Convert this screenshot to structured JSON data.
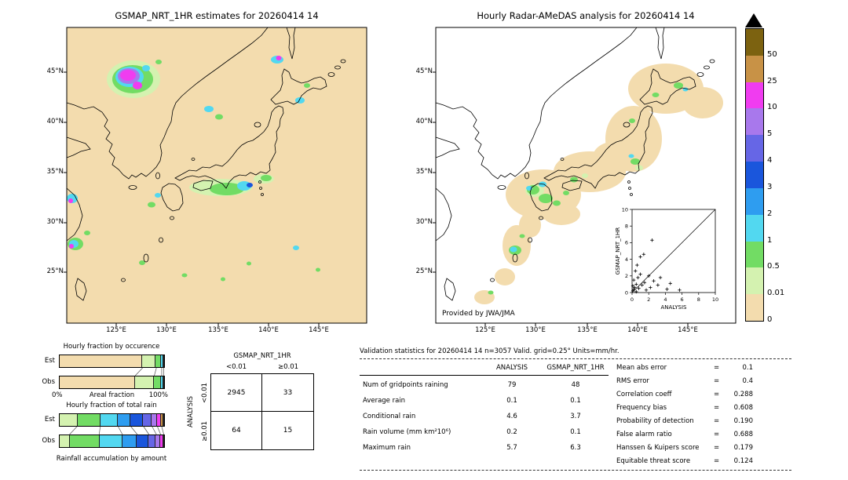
{
  "maps": {
    "left": {
      "title": "GSMAP_NRT_1HR estimates for 20260414 14"
    },
    "right": {
      "title": "Hourly Radar-AMeDAS analysis for 20260414 14",
      "credit": "Provided by JWA/JMA"
    },
    "lat_ticks": [
      "45°N",
      "40°N",
      "35°N",
      "30°N",
      "25°N"
    ],
    "lon_ticks": [
      "125°E",
      "130°E",
      "135°E",
      "140°E",
      "145°E"
    ]
  },
  "colorbar": {
    "labels": [
      "50",
      "25",
      "10",
      "5",
      "4",
      "3",
      "2",
      "1",
      "0.5",
      "0.01",
      "0"
    ],
    "colors_top_to_bottom": [
      "#7c6210",
      "#c89246",
      "#f03cf0",
      "#a878ec",
      "#6666e6",
      "#1a56dc",
      "#2e9df0",
      "#52d8f0",
      "#72dc64",
      "#d4f2b0",
      "#f3dcae"
    ]
  },
  "occurrence": {
    "title": "Hourly fraction by occurence",
    "rows": [
      {
        "label": "Est",
        "segments": [
          {
            "c": "#f3dcae",
            "w": 0.79
          },
          {
            "c": "#d4f2b0",
            "w": 0.13
          },
          {
            "c": "#72dc64",
            "w": 0.05
          },
          {
            "c": "#52d8f0",
            "w": 0.02
          },
          {
            "c": "#2e9df0",
            "w": 0.01
          }
        ]
      },
      {
        "label": "Obs",
        "segments": [
          {
            "c": "#f3dcae",
            "w": 0.72
          },
          {
            "c": "#d4f2b0",
            "w": 0.18
          },
          {
            "c": "#72dc64",
            "w": 0.07
          },
          {
            "c": "#52d8f0",
            "w": 0.02
          },
          {
            "c": "#2e9df0",
            "w": 0.01
          }
        ]
      }
    ],
    "axis": {
      "left": "0%",
      "center": "Areal fraction",
      "right": "100%"
    }
  },
  "total_rain": {
    "title": "Hourly fraction of total rain",
    "rows": [
      {
        "label": "Est",
        "segments": [
          {
            "c": "#d4f2b0",
            "w": 0.17
          },
          {
            "c": "#72dc64",
            "w": 0.22
          },
          {
            "c": "#52d8f0",
            "w": 0.17
          },
          {
            "c": "#2e9df0",
            "w": 0.12
          },
          {
            "c": "#1a56dc",
            "w": 0.12
          },
          {
            "c": "#6666e6",
            "w": 0.08
          },
          {
            "c": "#a878ec",
            "w": 0.05
          },
          {
            "c": "#f03cf0",
            "w": 0.04
          },
          {
            "c": "#c89246",
            "w": 0.02
          },
          {
            "c": "#7c6210",
            "w": 0.01
          }
        ]
      },
      {
        "label": "Obs",
        "segments": [
          {
            "c": "#d4f2b0",
            "w": 0.1
          },
          {
            "c": "#72dc64",
            "w": 0.28
          },
          {
            "c": "#52d8f0",
            "w": 0.22
          },
          {
            "c": "#2e9df0",
            "w": 0.14
          },
          {
            "c": "#1a56dc",
            "w": 0.11
          },
          {
            "c": "#6666e6",
            "w": 0.07
          },
          {
            "c": "#a878ec",
            "w": 0.04
          },
          {
            "c": "#f03cf0",
            "w": 0.03
          },
          {
            "c": "#c89246",
            "w": 0.01
          }
        ]
      }
    ],
    "caption": "Rainfall accumulation by amount"
  },
  "contingency": {
    "col_header": "GSMAP_NRT_1HR",
    "row_header": "ANALYSIS",
    "col_labels": [
      "<0.01",
      "≥0.01"
    ],
    "row_labels": [
      "<0.01",
      "≥0.01"
    ],
    "values": [
      [
        "2945",
        "33"
      ],
      [
        "64",
        "15"
      ]
    ]
  },
  "validation": {
    "title": "Validation statistics for 20260414 14  n=3057 Valid. grid=0.25° Units=mm/hr.",
    "col_headers": [
      "ANALYSIS",
      "GSMAP_NRT_1HR"
    ],
    "rows": [
      {
        "label": "Num of gridpoints raining",
        "a": "79",
        "g": "48"
      },
      {
        "label": "Average rain",
        "a": "0.1",
        "g": "0.1"
      },
      {
        "label": "Conditional rain",
        "a": "4.6",
        "g": "3.7"
      },
      {
        "label": "Rain volume (mm km²10⁶)",
        "a": "0.2",
        "g": "0.1"
      },
      {
        "label": "Maximum rain",
        "a": "5.7",
        "g": "6.3"
      }
    ],
    "stats": [
      {
        "label": "Mean abs error",
        "value": "0.1"
      },
      {
        "label": "RMS error",
        "value": "0.4"
      },
      {
        "label": "Correlation coeff",
        "value": "0.288"
      },
      {
        "label": "Frequency bias",
        "value": "0.608"
      },
      {
        "label": "Probability of detection",
        "value": "0.190"
      },
      {
        "label": "False alarm ratio",
        "value": "0.688"
      },
      {
        "label": "Hanssen & Kuipers score",
        "value": "0.179"
      },
      {
        "label": "Equitable threat score",
        "value": "0.124"
      }
    ]
  },
  "inset": {
    "xlabel": "ANALYSIS",
    "ylabel": "GSMAP_NRT_1HR",
    "ticks": [
      "0",
      "2",
      "4",
      "6",
      "8",
      "10"
    ]
  },
  "chart_data": [
    {
      "type": "heatmap",
      "title": "GSMAP_NRT_1HR estimates for 20260414 14",
      "x_ticks": [
        "125°E",
        "130°E",
        "135°E",
        "140°E",
        "145°E"
      ],
      "y_ticks": [
        "45°N",
        "40°N",
        "35°N",
        "30°N",
        "25°N"
      ],
      "legend_title": "mm/hr",
      "levels": [
        0,
        0.01,
        0.5,
        1,
        2,
        3,
        4,
        5,
        10,
        25,
        50
      ],
      "level_colors_bottom_to_top": [
        "#f3dcae",
        "#d4f2b0",
        "#72dc64",
        "#52d8f0",
        "#2e9df0",
        "#1a56dc",
        "#6666e6",
        "#a878ec",
        "#f03cf0",
        "#c89246",
        "#7c6210"
      ]
    },
    {
      "type": "heatmap",
      "title": "Hourly Radar-AMeDAS analysis for 20260414 14",
      "x_ticks": [
        "125°E",
        "130°E",
        "135°E",
        "140°E",
        "145°E"
      ],
      "y_ticks": [
        "45°N",
        "40°N",
        "35°N",
        "30°N",
        "25°N"
      ],
      "legend_title": "mm/hr",
      "levels": [
        0,
        0.01,
        0.5,
        1,
        2,
        3,
        4,
        5,
        10,
        25,
        50
      ],
      "credit": "Provided by JWA/JMA"
    },
    {
      "type": "scatter",
      "xlabel": "ANALYSIS",
      "ylabel": "GSMAP_NRT_1HR",
      "xlim": [
        0,
        10
      ],
      "ylim": [
        0,
        10
      ],
      "diagonal_line": true,
      "points": [
        [
          0.1,
          0.2
        ],
        [
          0.1,
          0.8
        ],
        [
          0.2,
          0.4
        ],
        [
          0.2,
          1.5
        ],
        [
          0.3,
          0.6
        ],
        [
          0.4,
          2.6
        ],
        [
          0.5,
          1.0
        ],
        [
          0.5,
          0.1
        ],
        [
          0.6,
          3.3
        ],
        [
          0.7,
          1.8
        ],
        [
          0.8,
          0.5
        ],
        [
          1.0,
          2.2
        ],
        [
          1.0,
          4.3
        ],
        [
          1.2,
          0.9
        ],
        [
          1.4,
          4.6
        ],
        [
          1.5,
          1.2
        ],
        [
          1.7,
          0.3
        ],
        [
          2.0,
          2.0
        ],
        [
          2.2,
          0.6
        ],
        [
          2.4,
          6.3
        ],
        [
          2.6,
          1.4
        ],
        [
          3.1,
          0.9
        ],
        [
          3.4,
          1.8
        ],
        [
          4.2,
          0.4
        ],
        [
          4.6,
          1.1
        ],
        [
          5.7,
          0.3
        ]
      ]
    },
    {
      "type": "bar",
      "orientation": "horizontal",
      "stacked": true,
      "title": "Hourly fraction by occurence",
      "categories": [
        "Est",
        "Obs"
      ],
      "xlabel": "Areal fraction",
      "xlim_labels": [
        "0%",
        "100%"
      ],
      "series_levels": [
        "0",
        "0.01",
        "0.5",
        "1",
        "2"
      ],
      "values": [
        [
          0.79,
          0.13,
          0.05,
          0.02,
          0.01
        ],
        [
          0.72,
          0.18,
          0.07,
          0.02,
          0.01
        ]
      ]
    },
    {
      "type": "bar",
      "orientation": "horizontal",
      "stacked": true,
      "title": "Hourly fraction of total rain",
      "categories": [
        "Est",
        "Obs"
      ],
      "xlabel": "Rainfall accumulation by amount",
      "series_levels": [
        "0.01",
        "0.5",
        "1",
        "2",
        "3",
        "4",
        "5",
        "10",
        "25",
        "50"
      ],
      "values": [
        [
          0.17,
          0.22,
          0.17,
          0.12,
          0.12,
          0.08,
          0.05,
          0.04,
          0.02,
          0.01
        ],
        [
          0.1,
          0.28,
          0.22,
          0.14,
          0.11,
          0.07,
          0.04,
          0.03,
          0.01
        ]
      ]
    },
    {
      "type": "table",
      "title": "Contingency table",
      "col_group": "GSMAP_NRT_1HR",
      "row_group": "ANALYSIS",
      "columns": [
        "<0.01",
        "≥0.01"
      ],
      "rows": [
        "<0.01",
        "≥0.01"
      ],
      "values": [
        [
          2945,
          33
        ],
        [
          64,
          15
        ]
      ]
    },
    {
      "type": "table",
      "title": "Validation statistics for 20260414 14  n=3057 Valid. grid=0.25° Units=mm/hr.",
      "columns": [
        "ANALYSIS",
        "GSMAP_NRT_1HR"
      ],
      "rows": [
        [
          "Num of gridpoints raining",
          79,
          48
        ],
        [
          "Average rain",
          0.1,
          0.1
        ],
        [
          "Conditional rain",
          4.6,
          3.7
        ],
        [
          "Rain volume (mm km²10⁶)",
          0.2,
          0.1
        ],
        [
          "Maximum rain",
          5.7,
          6.3
        ]
      ],
      "scalar_stats": {
        "Mean abs error": 0.1,
        "RMS error": 0.4,
        "Correlation coeff": 0.288,
        "Frequency bias": 0.608,
        "Probability of detection": 0.19,
        "False alarm ratio": 0.688,
        "Hanssen & Kuipers score": 0.179,
        "Equitable threat score": 0.124
      }
    }
  ]
}
